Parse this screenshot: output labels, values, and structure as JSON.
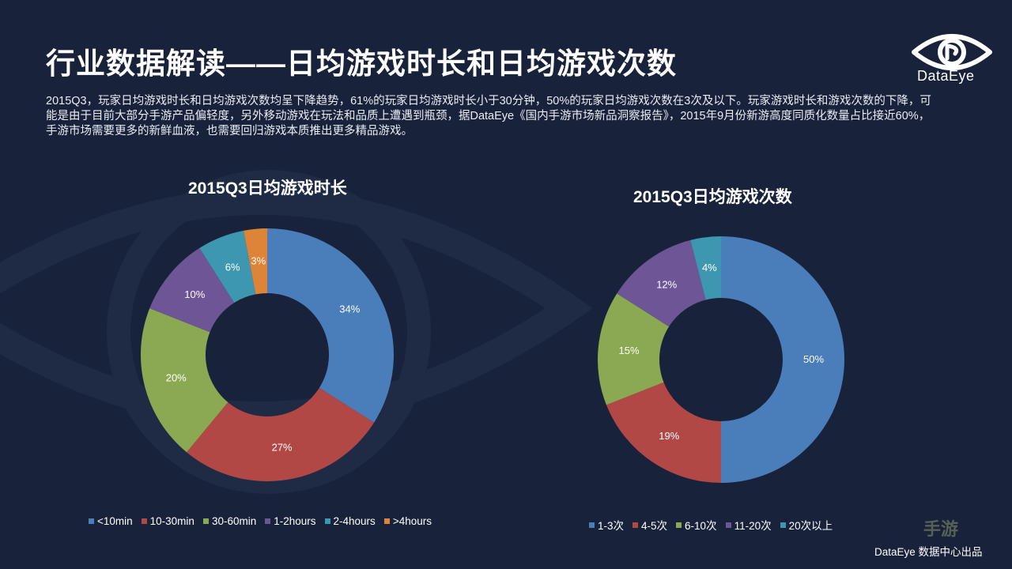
{
  "title": "行业数据解读——日均游戏时长和日均游戏次数",
  "description": "2015Q3，玩家日均游戏时长和日均游戏次数均呈下降趋势，61%的玩家日均游戏时长小于30分钟，50%的玩家日均游戏次数在3次及以下。玩家游戏时长和游戏次数的下降，可能是由于目前大部分手游产品偏轻度，另外移动游戏在玩法和品质上遭遇到瓶颈，据DataEye《国内手游市场新品洞察报告》，2015年9月份新游高度同质化数量占比接近60%，手游市场需要更多的新鲜血液，也需要回归游戏本质推出更多精品游戏。",
  "logo": {
    "text": "DataEye",
    "icon": "eye-logo-icon"
  },
  "footer": "DataEye 数据中心出品",
  "watermark": "手游",
  "colors": {
    "background": "#18223a",
    "label": "#ffffff"
  },
  "chart_data": [
    {
      "type": "pie",
      "donut": true,
      "title": "2015Q3日均游戏时长",
      "categories": [
        "<10min",
        "10-30min",
        "30-60min",
        "1-2hours",
        "2-4hours",
        ">4hours"
      ],
      "values": [
        34,
        27,
        20,
        10,
        6,
        3
      ],
      "labels": [
        "34%",
        "27%",
        "20%",
        "10%",
        "6%",
        "3%"
      ],
      "colors": [
        "#4a7ebb",
        "#b14846",
        "#8ba952",
        "#6d5596",
        "#3d97b0",
        "#dd8438"
      ],
      "legend": "bottom"
    },
    {
      "type": "pie",
      "donut": true,
      "title": "2015Q3日均游戏次数",
      "categories": [
        "1-3次",
        "4-5次",
        "6-10次",
        "11-20次",
        "20次以上"
      ],
      "values": [
        50,
        19,
        15,
        12,
        4
      ],
      "labels": [
        "50%",
        "19%",
        "15%",
        "12%",
        "4%"
      ],
      "colors": [
        "#4a7ebb",
        "#b14846",
        "#8ba952",
        "#6d5596",
        "#3d97b0"
      ],
      "legend": "bottom"
    }
  ]
}
